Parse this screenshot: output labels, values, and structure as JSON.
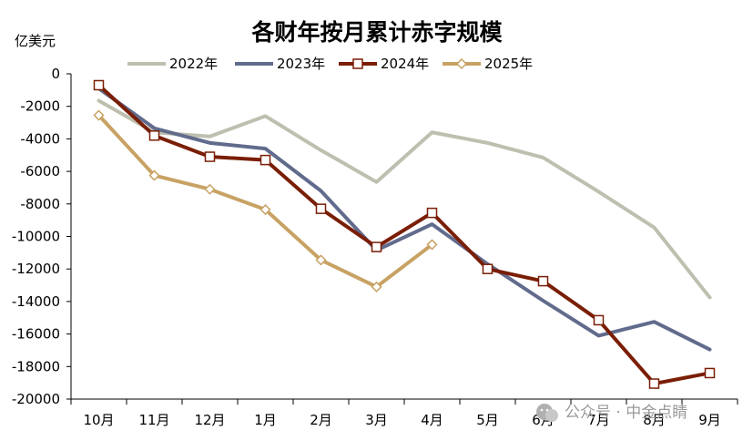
{
  "chart_data": {
    "type": "line",
    "title": "各财年按月累计赤字规模",
    "ylabel": "亿美元",
    "xlabel": "",
    "categories": [
      "10月",
      "11月",
      "12月",
      "1月",
      "2月",
      "3月",
      "4月",
      "5月",
      "6月",
      "7月",
      "8月",
      "9月"
    ],
    "ylim": [
      -20000,
      0
    ],
    "yticks": [
      0,
      -2000,
      -4000,
      -6000,
      -8000,
      -10000,
      -12000,
      -14000,
      -16000,
      -18000,
      -20000
    ],
    "grid": false,
    "legend_position": "top",
    "series": [
      {
        "name": "2022年",
        "color": "#bfbfb0",
        "marker": "none",
        "values": [
          -1650,
          -3600,
          -3850,
          -2600,
          -4700,
          -6650,
          -3600,
          -4250,
          -5150,
          -7250,
          -9450,
          -13750
        ]
      },
      {
        "name": "2023年",
        "color": "#616b8c",
        "marker": "none",
        "values": [
          -900,
          -3350,
          -4250,
          -4600,
          -7200,
          -10850,
          -9250,
          -11700,
          -13950,
          -16100,
          -15250,
          -16950
        ]
      },
      {
        "name": "2024年",
        "color": "#7a1e06",
        "marker": "square",
        "values": [
          -700,
          -3800,
          -5100,
          -5300,
          -8300,
          -10650,
          -8550,
          -12000,
          -12750,
          -15150,
          -19050,
          -18400
        ]
      },
      {
        "name": "2025年",
        "color": "#c8a264",
        "marker": "diamond",
        "values": [
          -2550,
          -6250,
          -7100,
          -8350,
          -11450,
          -13100,
          -10500,
          null,
          null,
          null,
          null,
          null
        ]
      }
    ]
  },
  "watermark": "公众号 · 中金点睛"
}
